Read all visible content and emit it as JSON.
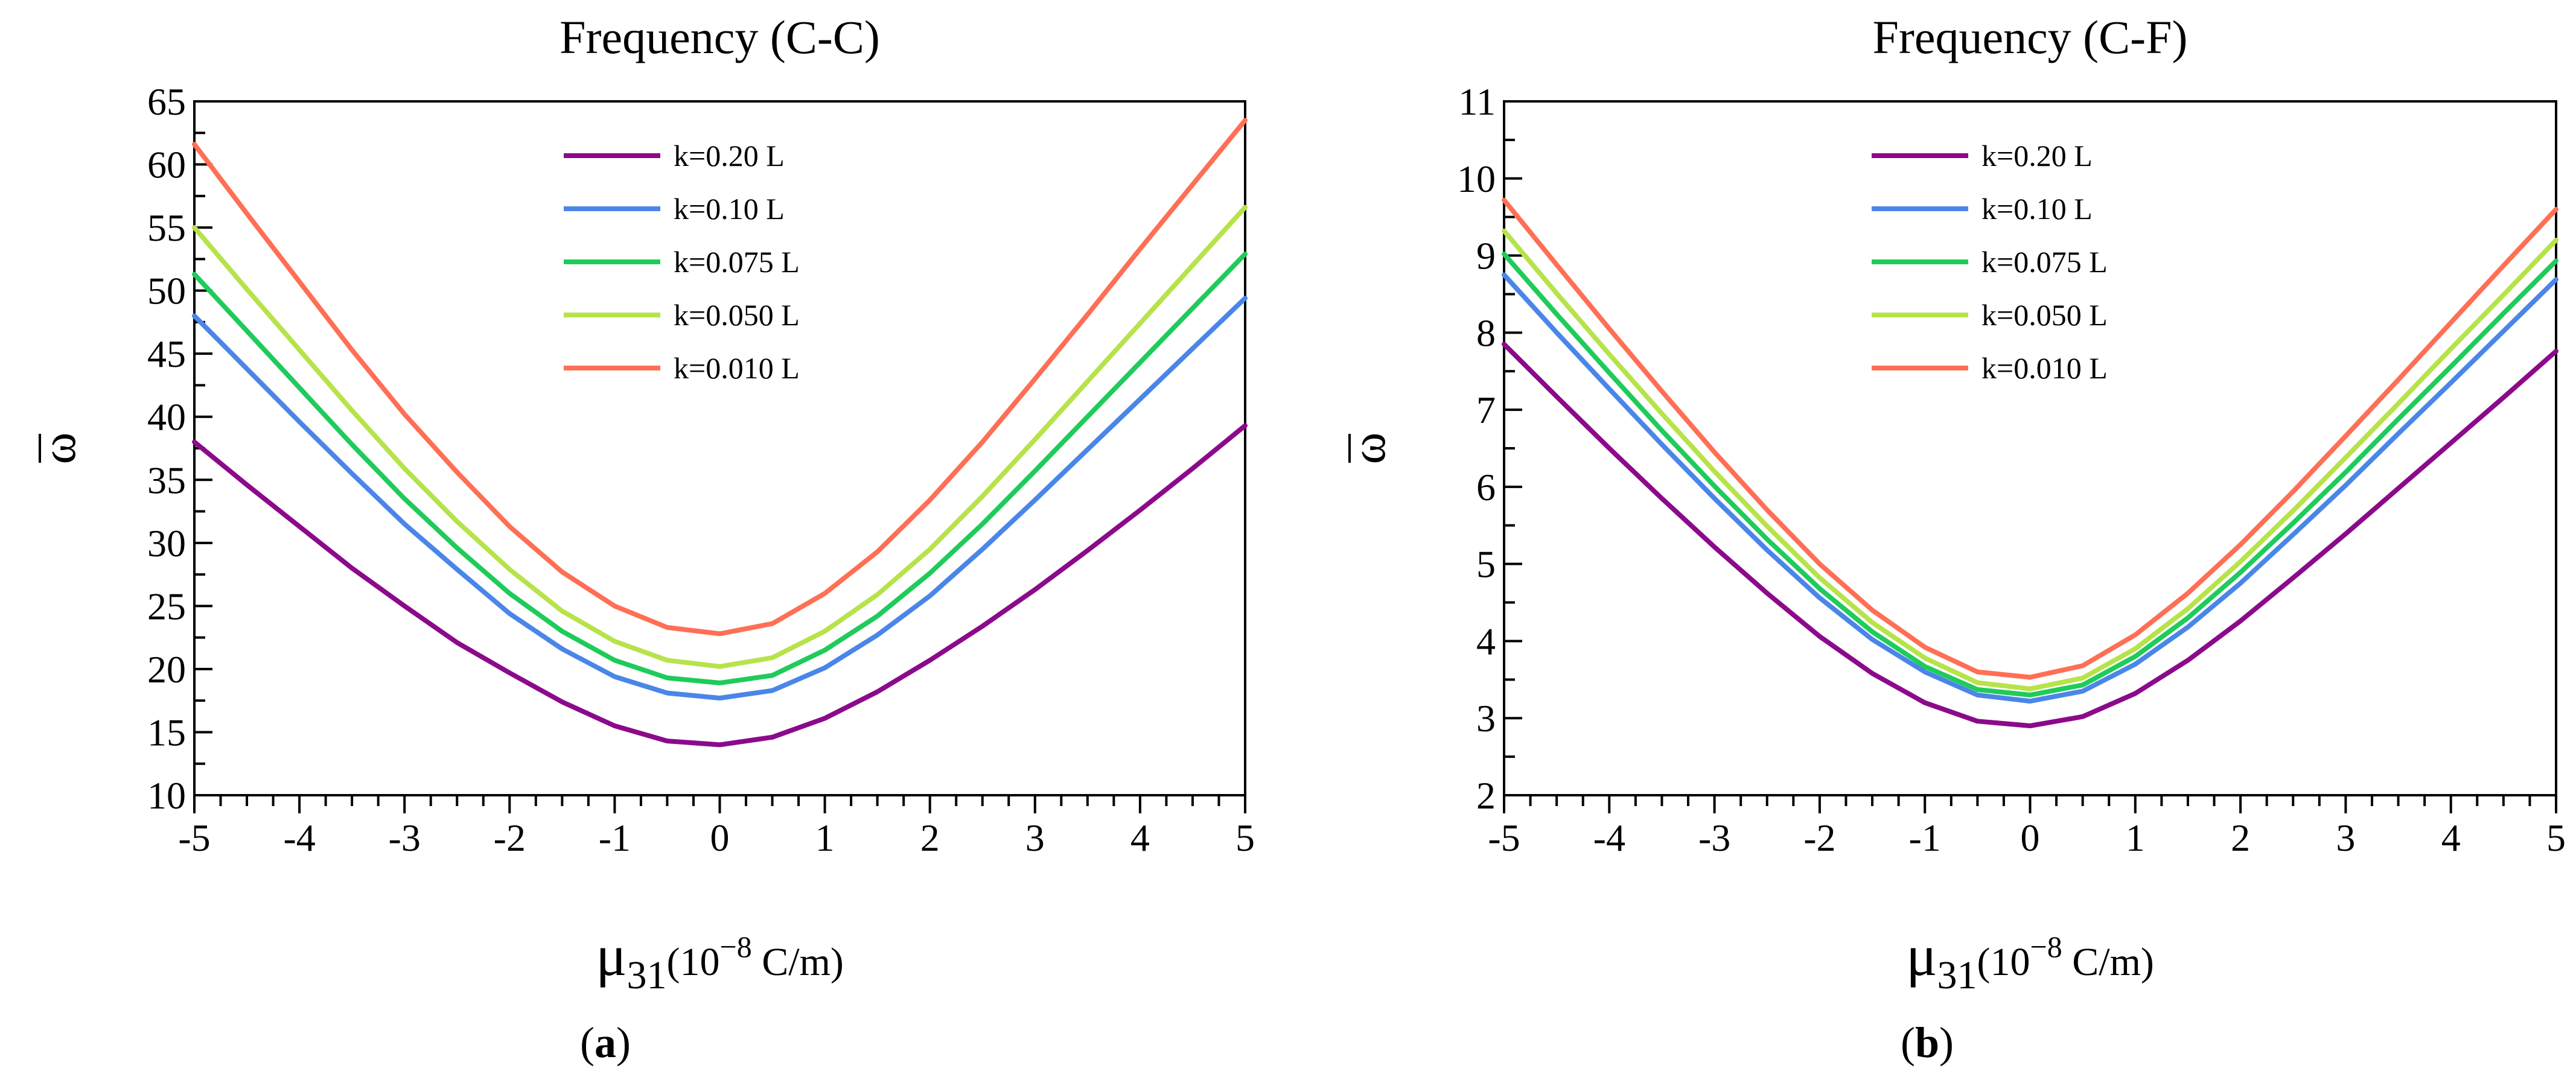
{
  "figure_labels": [
    {
      "open": "(",
      "letter": "a",
      "close": ")"
    },
    {
      "open": "(",
      "letter": "b",
      "close": ")"
    }
  ],
  "chart_data": [
    {
      "type": "line",
      "title": "Frequency (C-C)",
      "ylabel": "ω",
      "xlabel": {
        "mu": "μ",
        "sub": "31",
        "pre": "(10",
        "exp": "−8",
        "post": "  C/m)"
      },
      "xlim": [
        -5,
        5
      ],
      "ylim": [
        10,
        65
      ],
      "xticks": [
        -5,
        -4,
        -3,
        -2,
        -1,
        0,
        1,
        2,
        3,
        4,
        5
      ],
      "yticks": [
        10,
        15,
        20,
        25,
        30,
        35,
        40,
        45,
        50,
        55,
        60,
        65
      ],
      "x": [
        -5,
        -4.5,
        -4,
        -3.5,
        -3,
        -2.5,
        -2,
        -1.5,
        -1,
        -0.5,
        0,
        0.5,
        1,
        1.5,
        2,
        2.5,
        3,
        3.5,
        4,
        4.5,
        5
      ],
      "series": [
        {
          "name": "k=0.20 L",
          "color": "#8B0A8B",
          "values": [
            38.0,
            34.6,
            31.3,
            28.0,
            25.0,
            22.1,
            19.7,
            17.4,
            15.5,
            14.3,
            14.0,
            14.6,
            16.1,
            18.2,
            20.7,
            23.4,
            26.3,
            29.4,
            32.6,
            35.9,
            39.3
          ]
        },
        {
          "name": "k=0.10 L",
          "color": "#4A86E8",
          "values": [
            48.0,
            43.8,
            39.6,
            35.5,
            31.5,
            27.9,
            24.4,
            21.6,
            19.4,
            18.1,
            17.7,
            18.3,
            20.1,
            22.7,
            25.8,
            29.5,
            33.4,
            37.4,
            41.4,
            45.4,
            49.4
          ]
        },
        {
          "name": "k=0.075 L",
          "color": "#1FCB5A",
          "values": [
            51.3,
            46.8,
            42.3,
            37.8,
            33.5,
            29.6,
            26.0,
            23.0,
            20.7,
            19.3,
            18.9,
            19.5,
            21.5,
            24.2,
            27.6,
            31.5,
            35.7,
            40.0,
            44.3,
            48.6,
            52.9
          ]
        },
        {
          "name": "k=0.050 L",
          "color": "#B7E34A",
          "values": [
            55.0,
            50.1,
            45.3,
            40.5,
            35.9,
            31.7,
            27.9,
            24.6,
            22.2,
            20.7,
            20.2,
            20.9,
            23.0,
            25.9,
            29.5,
            33.7,
            38.2,
            42.8,
            47.4,
            52.0,
            56.6
          ]
        },
        {
          "name": "k=0.010  L",
          "color": "#FF6F55",
          "values": [
            61.6,
            56.1,
            50.7,
            45.3,
            40.2,
            35.6,
            31.3,
            27.7,
            25.0,
            23.3,
            22.8,
            23.6,
            26.0,
            29.3,
            33.4,
            38.0,
            43.0,
            48.1,
            53.3,
            58.4,
            63.5
          ]
        }
      ]
    },
    {
      "type": "line",
      "title": "Frequency (C-F)",
      "ylabel": "ω",
      "xlabel": {
        "mu": "μ",
        "sub": "31",
        "pre": "(10",
        "exp": "−8",
        "post": "  C/m)"
      },
      "xlim": [
        -5,
        5
      ],
      "ylim": [
        2,
        11
      ],
      "xticks": [
        -5,
        -4,
        -3,
        -2,
        -1,
        0,
        1,
        2,
        3,
        4,
        5
      ],
      "yticks": [
        2,
        3,
        4,
        5,
        6,
        7,
        8,
        9,
        10,
        11
      ],
      "x": [
        -5,
        -4.5,
        -4,
        -3.5,
        -3,
        -2.5,
        -2,
        -1.5,
        -1,
        -0.5,
        0,
        0.5,
        1,
        1.5,
        2,
        2.5,
        3,
        3.5,
        4,
        4.5,
        5
      ],
      "series": [
        {
          "name": "k=0.20 L",
          "color": "#8B0A8B",
          "values": [
            7.85,
            7.17,
            6.5,
            5.85,
            5.22,
            4.62,
            4.06,
            3.58,
            3.2,
            2.96,
            2.9,
            3.02,
            3.32,
            3.75,
            4.26,
            4.82,
            5.39,
            5.98,
            6.57,
            7.16,
            7.76
          ]
        },
        {
          "name": "k=0.10 L",
          "color": "#4A86E8",
          "values": [
            8.75,
            8.0,
            7.27,
            6.55,
            5.85,
            5.18,
            4.56,
            4.02,
            3.6,
            3.3,
            3.22,
            3.35,
            3.7,
            4.18,
            4.75,
            5.38,
            6.02,
            6.69,
            7.35,
            8.02,
            8.69
          ]
        },
        {
          "name": "k=0.075 L",
          "color": "#1FCB5A",
          "values": [
            9.02,
            8.24,
            7.48,
            6.73,
            6.01,
            5.32,
            4.68,
            4.12,
            3.67,
            3.37,
            3.3,
            3.43,
            3.8,
            4.3,
            4.89,
            5.53,
            6.19,
            6.88,
            7.56,
            8.25,
            8.93
          ]
        },
        {
          "name": "k=0.050 L",
          "color": "#B7E34A",
          "values": [
            9.32,
            8.51,
            7.72,
            6.95,
            6.2,
            5.49,
            4.82,
            4.24,
            3.78,
            3.46,
            3.38,
            3.52,
            3.9,
            4.42,
            5.03,
            5.69,
            6.38,
            7.08,
            7.79,
            8.49,
            9.2
          ]
        },
        {
          "name": "k=0.010  L",
          "color": "#FF6F55",
          "values": [
            9.72,
            8.88,
            8.05,
            7.24,
            6.45,
            5.7,
            5.0,
            4.4,
            3.92,
            3.6,
            3.53,
            3.68,
            4.08,
            4.62,
            5.25,
            5.94,
            6.66,
            7.39,
            8.13,
            8.87,
            9.6
          ]
        }
      ]
    }
  ]
}
